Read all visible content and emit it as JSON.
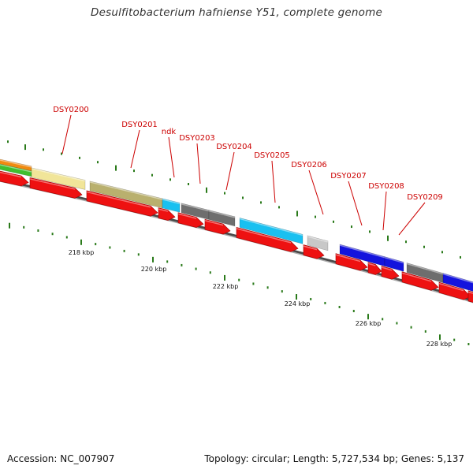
{
  "title": "Desulfitobacterium hafniense Y51, complete genome",
  "footer": {
    "accession": "Accession: NC_007907",
    "topology": "Topology: circular; Length: 5,727,534 bp; Genes: 5,137"
  },
  "colors": {
    "gene_label": "#cc0000",
    "cds_arrow": "#ee1111",
    "backbone": "#777777",
    "tick": "#2a7a1a"
  },
  "gene_labels": [
    {
      "name": "DSY0200"
    },
    {
      "name": "DSY0201"
    },
    {
      "name": "ndk"
    },
    {
      "name": "DSY0203"
    },
    {
      "name": "DSY0204"
    },
    {
      "name": "DSY0205"
    },
    {
      "name": "DSY0206"
    },
    {
      "name": "DSY0207"
    },
    {
      "name": "DSY0208"
    },
    {
      "name": "DSY0209"
    }
  ],
  "kbp_labels": [
    "218 kbp",
    "220 kbp",
    "222 kbp",
    "224 kbp",
    "226 kbp",
    "228 kbp"
  ],
  "feature_colors": {
    "orange": "#f08a10",
    "green": "#3fbf2f",
    "khaki": "#f1e599",
    "olive": "#b9b06e",
    "cyan": "#19c0f0",
    "darkgray": "#6e6e6e",
    "lightgray": "#c8c8c8",
    "blue": "#1414dd"
  }
}
